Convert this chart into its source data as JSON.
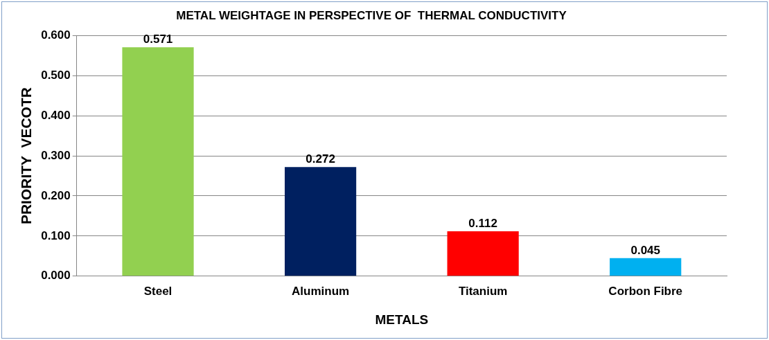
{
  "chart_data": {
    "type": "bar",
    "title": "METAL WEIGHTAGE IN PERSPECTIVE OF  THERMAL CONDUCTIVITY",
    "xlabel": "METALS",
    "ylabel": "PRIORITY  VECOTR",
    "categories": [
      "Steel",
      "Aluminum",
      "Titanium",
      "Corbon Fibre"
    ],
    "values": [
      0.571,
      0.272,
      0.112,
      0.045
    ],
    "colors": [
      "#92d050",
      "#002060",
      "#ff0000",
      "#00b0f0"
    ],
    "ylim": [
      0,
      0.6
    ],
    "yticks": [
      {
        "value": 0,
        "label": "0.000"
      },
      {
        "value": 0.1,
        "label": "0.100"
      },
      {
        "value": 0.2,
        "label": "0.200"
      },
      {
        "value": 0.3,
        "label": "0.300"
      },
      {
        "value": 0.4,
        "label": "0.400"
      },
      {
        "value": 0.5,
        "label": "0.500"
      },
      {
        "value": 0.6,
        "label": "0.600"
      }
    ],
    "grid": "y",
    "data_labels": true,
    "legend": false
  }
}
